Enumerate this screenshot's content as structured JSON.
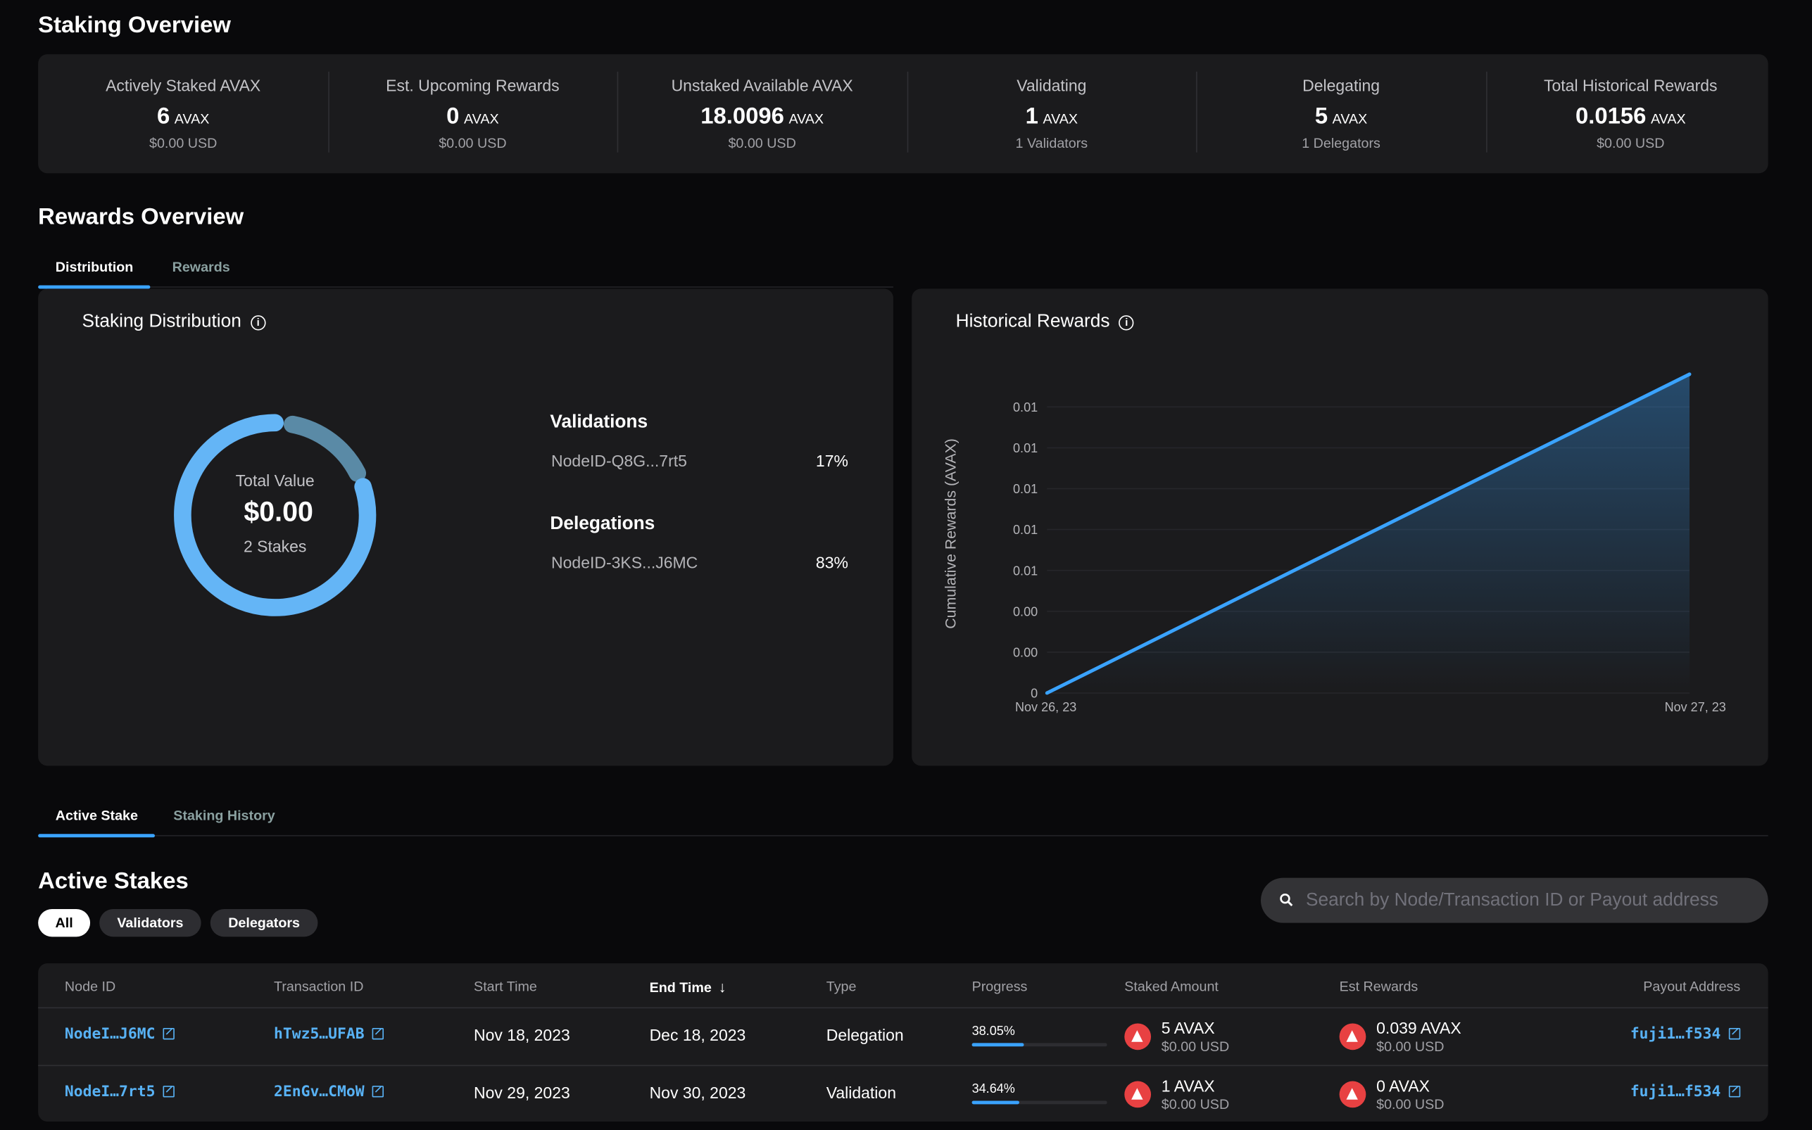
{
  "staking_overview": {
    "title": "Staking Overview",
    "stats": [
      {
        "label": "Actively Staked AVAX",
        "value": "6",
        "unit": "AVAX",
        "sub": "$0.00 USD"
      },
      {
        "label": "Est. Upcoming Rewards",
        "value": "0",
        "unit": "AVAX",
        "sub": "$0.00 USD"
      },
      {
        "label": "Unstaked Available AVAX",
        "value": "18.0096",
        "unit": "AVAX",
        "sub": "$0.00 USD"
      },
      {
        "label": "Validating",
        "value": "1",
        "unit": "AVAX",
        "sub": "1 Validators"
      },
      {
        "label": "Delegating",
        "value": "5",
        "unit": "AVAX",
        "sub": "1 Delegators"
      },
      {
        "label": "Total Historical Rewards",
        "value": "0.0156",
        "unit": "AVAX",
        "sub": "$0.00 USD"
      }
    ]
  },
  "rewards_overview": {
    "title": "Rewards Overview",
    "tabs": [
      "Distribution",
      "Rewards"
    ],
    "active_tab": "Distribution"
  },
  "distribution": {
    "title": "Staking Distribution",
    "center_label": "Total Value",
    "center_value": "$0.00",
    "center_sub": "2 Stakes",
    "groups": [
      {
        "heading": "Validations",
        "node": "NodeID-Q8G...7rt5",
        "percent": "17%",
        "share": 17,
        "color": "#5a8aa6"
      },
      {
        "heading": "Delegations",
        "node": "NodeID-3KS...J6MC",
        "percent": "83%",
        "share": 83,
        "color": "#64b5f6"
      }
    ]
  },
  "chart_data": {
    "type": "area",
    "title": "Historical Rewards",
    "ylabel": "Cumulative Rewards (AVAX)",
    "x": [
      "Nov 26, 23",
      "Nov 27, 23"
    ],
    "y": [
      0,
      0.0156
    ],
    "yticks": [
      0,
      0.002,
      0.004,
      0.006,
      0.008,
      0.01,
      0.012,
      0.014
    ],
    "ytick_labels": [
      "0",
      "0.00",
      "0.00",
      "0.01",
      "0.01",
      "0.01",
      "0.01",
      "0.01"
    ],
    "ylim": [
      0,
      0.0156
    ],
    "grid": true,
    "color": "#3aa3ff"
  },
  "stakes_tabs": {
    "tabs": [
      "Active Stake",
      "Staking History"
    ],
    "active": "Active Stake"
  },
  "active_stakes": {
    "title": "Active Stakes",
    "filters": [
      "All",
      "Validators",
      "Delegators"
    ],
    "active_filter": "All",
    "search_placeholder": "Search by Node/Transaction ID or Payout address",
    "columns": [
      "Node ID",
      "Transaction ID",
      "Start Time",
      "End Time",
      "Type",
      "Progress",
      "Staked Amount",
      "Est Rewards",
      "Payout Address"
    ],
    "sort_column": "End Time",
    "sort_dir": "desc",
    "rows": [
      {
        "node": "NodeI…J6MC",
        "tx": "hTwz5…UFAB",
        "start": "Nov 18, 2023",
        "end": "Dec 18, 2023",
        "type": "Delegation",
        "progress": "38.05%",
        "progress_value": 38.05,
        "staked": "5 AVAX",
        "staked_usd": "$0.00 USD",
        "rewards": "0.039 AVAX",
        "rewards_usd": "$0.00 USD",
        "payout": "fuji1…f534"
      },
      {
        "node": "NodeI…7rt5",
        "tx": "2EnGv…CMoW",
        "start": "Nov 29, 2023",
        "end": "Nov 30, 2023",
        "type": "Validation",
        "progress": "34.64%",
        "progress_value": 34.64,
        "staked": "1 AVAX",
        "staked_usd": "$0.00 USD",
        "rewards": "0 AVAX",
        "rewards_usd": "$0.00 USD",
        "payout": "fuji1…f534"
      }
    ]
  }
}
